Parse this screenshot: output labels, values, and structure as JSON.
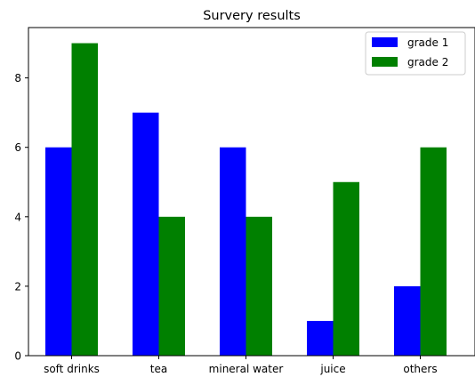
{
  "chart_data": {
    "type": "bar",
    "title": "Survery results",
    "xlabel": "",
    "ylabel": "",
    "categories": [
      "soft drinks",
      "tea",
      "mineral water",
      "juice",
      "others"
    ],
    "series": [
      {
        "name": "grade 1",
        "color": "#0000ff",
        "values": [
          6,
          7,
          6,
          1,
          2
        ]
      },
      {
        "name": "grade 2",
        "color": "#008000",
        "values": [
          9,
          4,
          4,
          5,
          6
        ]
      }
    ],
    "ylim": [
      0,
      9.45
    ],
    "yticks": [
      0,
      2,
      4,
      6,
      8
    ],
    "grid": false,
    "legend_position": "top-right"
  }
}
